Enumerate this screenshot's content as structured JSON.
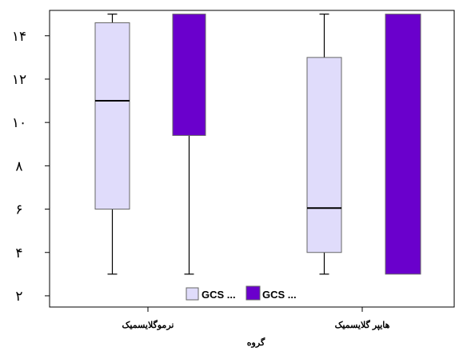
{
  "chart_data": {
    "type": "box",
    "title": "",
    "xlabel": "گروه",
    "ylabel": "",
    "ylim": [
      1.5,
      15
    ],
    "yticks": [
      2,
      4,
      6,
      8,
      10,
      12,
      14
    ],
    "ytick_labels": [
      "۲",
      "۴",
      "۶",
      "۸",
      "۱۰",
      "۱۲",
      "۱۴"
    ],
    "categories": [
      "نرموگلایسمیک",
      "هایپر گلایسمیک"
    ],
    "grid": false,
    "legend_position": "bottom-center",
    "series": [
      {
        "name": "GCS ...",
        "color": "#e0dcfb",
        "boxes": [
          {
            "min": 3,
            "q1": 6,
            "median": 11,
            "q3": 14.6,
            "max": 15
          },
          {
            "min": 3,
            "q1": 4,
            "median": 6.05,
            "q3": 13,
            "max": 15
          }
        ]
      },
      {
        "name": "GCS ...",
        "color": "#6a00cc",
        "boxes": [
          {
            "min": 3,
            "q1": 9.4,
            "median": 15,
            "q3": 15,
            "max": 15
          },
          {
            "min": 3,
            "q1": 3,
            "median": 15,
            "q3": 15,
            "max": 15
          }
        ]
      }
    ]
  }
}
